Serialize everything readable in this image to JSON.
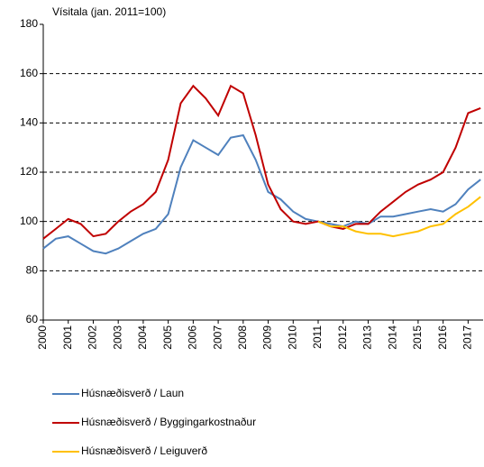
{
  "chart_data": {
    "type": "line",
    "y_label": "Vísitala (jan. 2011=100)",
    "x": [
      2000,
      2000.5,
      2001,
      2001.5,
      2002,
      2002.5,
      2003,
      2003.5,
      2004,
      2004.5,
      2005,
      2005.5,
      2006,
      2006.5,
      2007,
      2007.5,
      2008,
      2008.5,
      2009,
      2009.5,
      2010,
      2010.5,
      2011,
      2011.5,
      2012,
      2012.5,
      2013,
      2013.5,
      2014,
      2014.5,
      2015,
      2015.5,
      2016,
      2016.5,
      2017,
      2017.5
    ],
    "series": [
      {
        "name": "Húsnæðisverð / Laun",
        "color": "#4f81bd",
        "values": [
          89,
          93,
          94,
          91,
          88,
          87,
          89,
          92,
          95,
          97,
          103,
          122,
          133,
          130,
          127,
          134,
          135,
          125,
          112,
          109,
          104,
          101,
          100,
          99,
          98,
          100,
          99,
          102,
          102,
          103,
          104,
          105,
          104,
          107,
          113,
          117
        ]
      },
      {
        "name": "Húsnæðisverð / Byggingarkostnaður",
        "color": "#c00000",
        "values": [
          93,
          97,
          101,
          99,
          94,
          95,
          100,
          104,
          107,
          112,
          125,
          148,
          155,
          150,
          143,
          155,
          152,
          135,
          115,
          105,
          100,
          99,
          100,
          98,
          97,
          99,
          99,
          104,
          108,
          112,
          115,
          117,
          120,
          130,
          144,
          146
        ]
      },
      {
        "name": "Húsnæðisverð / Leiguverð",
        "color": "#ffc000",
        "values": [
          null,
          null,
          null,
          null,
          null,
          null,
          null,
          null,
          null,
          null,
          null,
          null,
          null,
          null,
          null,
          null,
          null,
          null,
          null,
          null,
          null,
          null,
          100,
          98,
          98,
          96,
          95,
          95,
          94,
          95,
          96,
          98,
          99,
          103,
          106,
          110
        ]
      }
    ],
    "xlim": [
      2000,
      2017.6
    ],
    "xticks": [
      2000,
      2001,
      2002,
      2003,
      2004,
      2005,
      2006,
      2007,
      2008,
      2009,
      2010,
      2011,
      2012,
      2013,
      2014,
      2015,
      2016,
      2017
    ],
    "ylim": [
      60,
      180
    ],
    "yticks": [
      60,
      80,
      100,
      120,
      140,
      160,
      180
    ],
    "grid": true
  }
}
